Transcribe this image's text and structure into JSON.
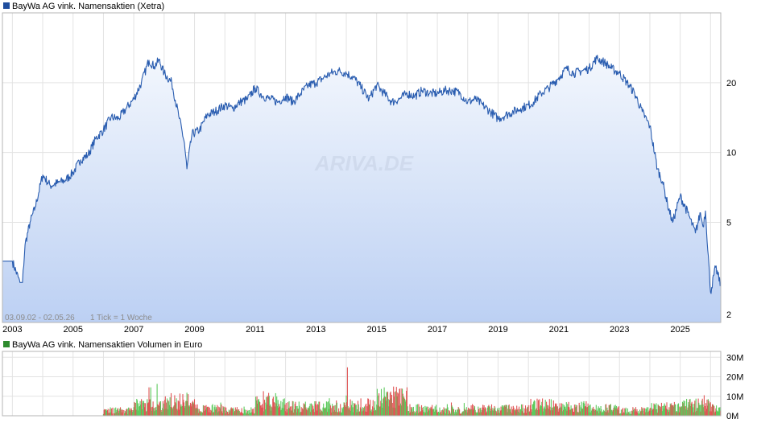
{
  "chart_data": [
    {
      "type": "area",
      "title": "BayWa AG vink. Namensaktien (Xetra)",
      "legend_color": "#1f4e9e",
      "line_color": "#2a5db0",
      "fill_top_color": "#f3f7fd",
      "fill_bottom_color": "#bcd0f3",
      "y_scale": "log",
      "ylim": [
        1.85,
        40
      ],
      "y_ticks": [
        2,
        5,
        10,
        20
      ],
      "x_ticks": [
        "2003",
        "2005",
        "2007",
        "2009",
        "2011",
        "2013",
        "2015",
        "2017",
        "2019",
        "2021",
        "2023",
        "2025"
      ],
      "xlim": [
        "2002-09-03",
        "2026-05-02"
      ],
      "range_text": "03.09.02 - 02.05.26",
      "tick_text": "1 Tick = 1 Woche",
      "watermark": "ARIVA.DE",
      "grid": true,
      "series": [
        {
          "name": "BayWa AG vink. Namensaktien (Xetra)",
          "x": [
            "2002-09",
            "2003-01",
            "2003-04",
            "2003-05",
            "2003-06",
            "2003-08",
            "2003-10",
            "2004-01",
            "2004-04",
            "2004-07",
            "2004-10",
            "2005-01",
            "2005-04",
            "2005-07",
            "2005-10",
            "2006-01",
            "2006-04",
            "2006-07",
            "2006-10",
            "2007-01",
            "2007-04",
            "2007-07",
            "2007-09",
            "2007-11",
            "2008-01",
            "2008-04",
            "2008-07",
            "2008-09",
            "2008-10",
            "2008-12",
            "2009-03",
            "2009-06",
            "2009-09",
            "2010-01",
            "2010-04",
            "2010-07",
            "2010-10",
            "2011-01",
            "2011-04",
            "2011-07",
            "2011-10",
            "2012-01",
            "2012-04",
            "2012-07",
            "2012-10",
            "2013-01",
            "2013-04",
            "2013-07",
            "2013-10",
            "2014-01",
            "2014-04",
            "2014-07",
            "2014-10",
            "2015-01",
            "2015-04",
            "2015-07",
            "2015-10",
            "2016-01",
            "2016-04",
            "2016-07",
            "2016-10",
            "2017-01",
            "2017-04",
            "2017-07",
            "2017-10",
            "2018-01",
            "2018-04",
            "2018-07",
            "2018-10",
            "2019-01",
            "2019-04",
            "2019-07",
            "2019-10",
            "2020-01",
            "2020-03",
            "2020-06",
            "2020-09",
            "2021-01",
            "2021-04",
            "2021-07",
            "2021-10",
            "2022-01",
            "2022-04",
            "2022-07",
            "2022-10",
            "2023-01",
            "2023-04",
            "2023-07",
            "2023-10",
            "2024-01",
            "2024-04",
            "2024-06",
            "2024-08",
            "2024-10",
            "2025-01",
            "2025-04",
            "2025-07",
            "2025-09",
            "2025-10",
            "2025-11",
            "2026-01",
            "2026-03",
            "2026-05"
          ],
          "values": [
            3.4,
            3.4,
            2.75,
            2.75,
            4.0,
            5.0,
            5.8,
            8.0,
            7.2,
            7.4,
            7.6,
            8.2,
            9.3,
            9.8,
            11.5,
            12.5,
            14.2,
            14.0,
            15.5,
            17.0,
            20.0,
            25.0,
            23.5,
            25.0,
            22.0,
            20.0,
            14.0,
            11.0,
            8.5,
            12.0,
            12.5,
            14.5,
            15.0,
            16.0,
            15.5,
            16.5,
            17.0,
            19.0,
            17.5,
            17.0,
            16.5,
            17.5,
            16.5,
            18.0,
            19.5,
            20.0,
            21.0,
            22.0,
            22.5,
            22.0,
            21.0,
            19.0,
            17.0,
            19.5,
            18.0,
            16.5,
            17.0,
            18.0,
            17.5,
            18.5,
            18.0,
            18.0,
            18.5,
            18.5,
            18.0,
            16.5,
            17.0,
            16.0,
            15.0,
            14.0,
            14.5,
            15.0,
            15.5,
            16.0,
            16.5,
            18.0,
            19.0,
            21.0,
            23.0,
            22.0,
            22.5,
            23.0,
            25.5,
            24.5,
            23.0,
            22.0,
            20.0,
            18.0,
            15.0,
            13.0,
            8.5,
            7.5,
            6.0,
            5.0,
            6.5,
            5.5,
            4.5,
            5.5,
            4.8,
            5.6,
            2.5,
            3.2,
            2.7
          ]
        }
      ]
    },
    {
      "type": "bar",
      "title": "BayWa AG vink. Namensaktien Volumen in Euro",
      "legend_color": "#2e8b2e",
      "up_color": "#5cc95c",
      "down_color": "#e05555",
      "y_ticks": [
        "0M",
        "10M",
        "20M",
        "30M"
      ],
      "ylim": [
        0,
        33
      ],
      "volume_start": "2006-01",
      "series": [
        {
          "name": "Volumen",
          "x": [
            "2006",
            "2007",
            "2008",
            "2009",
            "2010",
            "2011",
            "2012",
            "2013",
            "2014",
            "2015",
            "2016",
            "2017",
            "2018",
            "2019",
            "2020",
            "2021",
            "2022",
            "2023",
            "2024",
            "2025",
            "2026"
          ],
          "values": [
            3,
            6,
            8,
            4,
            3,
            7,
            5,
            5,
            6,
            10,
            4,
            3,
            4,
            4,
            6,
            5,
            4,
            3,
            5,
            6,
            4
          ],
          "peaks": [
            0,
            19,
            13,
            7,
            5,
            15,
            8,
            11,
            30,
            13,
            11,
            7,
            6,
            9,
            11,
            12,
            7,
            4,
            19,
            11,
            8
          ]
        }
      ]
    }
  ]
}
